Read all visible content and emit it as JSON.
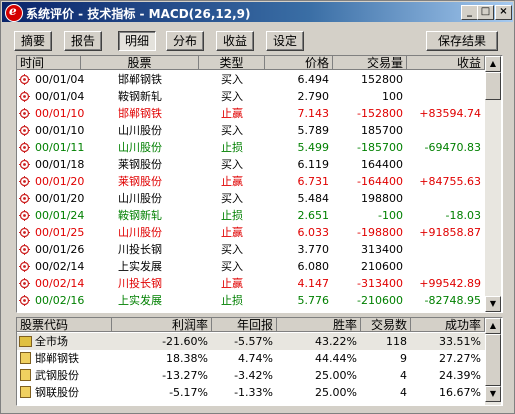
{
  "window": {
    "title": "系统评价 - 技术指标 - MACD(26,12,9)",
    "app_icon_letter": "e",
    "min_label": "_",
    "max_label": "□",
    "close_label": "×"
  },
  "toolbar": {
    "tabs": [
      {
        "label": "摘要",
        "pressed": false
      },
      {
        "label": "报告",
        "pressed": false
      },
      {
        "label": "明细",
        "pressed": true
      },
      {
        "label": "分布",
        "pressed": false
      },
      {
        "label": "收益",
        "pressed": false
      },
      {
        "label": "设定",
        "pressed": false
      }
    ],
    "save_label": "保存结果"
  },
  "trades": {
    "headers": [
      "时间",
      "股票",
      "类型",
      "价格",
      "交易量",
      "收益"
    ],
    "rows": [
      {
        "time": "00/01/04",
        "stock": "邯郸钢铁",
        "type": "买入",
        "price": "6.494",
        "volume": "152800",
        "profit": "",
        "color": "black"
      },
      {
        "time": "00/01/04",
        "stock": "鞍钢新轧",
        "type": "买入",
        "price": "2.790",
        "volume": "100",
        "profit": "",
        "color": "black"
      },
      {
        "time": "00/01/10",
        "stock": "邯郸钢铁",
        "type": "止赢",
        "price": "7.143",
        "volume": "-152800",
        "profit": "+83594.74",
        "color": "red"
      },
      {
        "time": "00/01/10",
        "stock": "山川股份",
        "type": "买入",
        "price": "5.789",
        "volume": "185700",
        "profit": "",
        "color": "black"
      },
      {
        "time": "00/01/11",
        "stock": "山川股份",
        "type": "止损",
        "price": "5.499",
        "volume": "-185700",
        "profit": "-69470.83",
        "color": "green"
      },
      {
        "time": "00/01/18",
        "stock": "莱钢股份",
        "type": "买入",
        "price": "6.119",
        "volume": "164400",
        "profit": "",
        "color": "black"
      },
      {
        "time": "00/01/20",
        "stock": "莱钢股份",
        "type": "止赢",
        "price": "6.731",
        "volume": "-164400",
        "profit": "+84755.63",
        "color": "red"
      },
      {
        "time": "00/01/20",
        "stock": "山川股份",
        "type": "买入",
        "price": "5.484",
        "volume": "198800",
        "profit": "",
        "color": "black"
      },
      {
        "time": "00/01/24",
        "stock": "鞍钢新轧",
        "type": "止损",
        "price": "2.651",
        "volume": "-100",
        "profit": "-18.03",
        "color": "green"
      },
      {
        "time": "00/01/25",
        "stock": "山川股份",
        "type": "止赢",
        "price": "6.033",
        "volume": "-198800",
        "profit": "+91858.87",
        "color": "red"
      },
      {
        "time": "00/01/26",
        "stock": "川投长钢",
        "type": "买入",
        "price": "3.770",
        "volume": "313400",
        "profit": "",
        "color": "black"
      },
      {
        "time": "00/02/14",
        "stock": "上实发展",
        "type": "买入",
        "price": "6.080",
        "volume": "210600",
        "profit": "",
        "color": "black"
      },
      {
        "time": "00/02/14",
        "stock": "川投长钢",
        "type": "止赢",
        "price": "4.147",
        "volume": "-313400",
        "profit": "+99542.89",
        "color": "red"
      },
      {
        "time": "00/02/16",
        "stock": "上实发展",
        "type": "止损",
        "price": "5.776",
        "volume": "-210600",
        "profit": "-82748.95",
        "color": "green"
      }
    ]
  },
  "summary": {
    "headers": [
      "股票代码",
      "利润率",
      "年回报",
      "胜率",
      "交易数",
      "成功率"
    ],
    "rows": [
      {
        "name": "全市场",
        "profit_rate": "-21.60%",
        "annual": "-5.57%",
        "win": "43.22%",
        "count": "118",
        "success": "33.51%",
        "kind": "folder"
      },
      {
        "name": "邯郸钢铁",
        "profit_rate": "18.38%",
        "annual": "4.74%",
        "win": "44.44%",
        "count": "9",
        "success": "27.27%",
        "kind": "stock"
      },
      {
        "name": "武钢股份",
        "profit_rate": "-13.27%",
        "annual": "-3.42%",
        "win": "25.00%",
        "count": "4",
        "success": "24.39%",
        "kind": "stock"
      },
      {
        "name": "钢联股份",
        "profit_rate": "-5.17%",
        "annual": "-1.33%",
        "win": "25.00%",
        "count": "4",
        "success": "16.67%",
        "kind": "stock"
      }
    ]
  },
  "colors": {
    "gain": "#e00000",
    "loss": "#008000",
    "neutral": "#000000"
  }
}
